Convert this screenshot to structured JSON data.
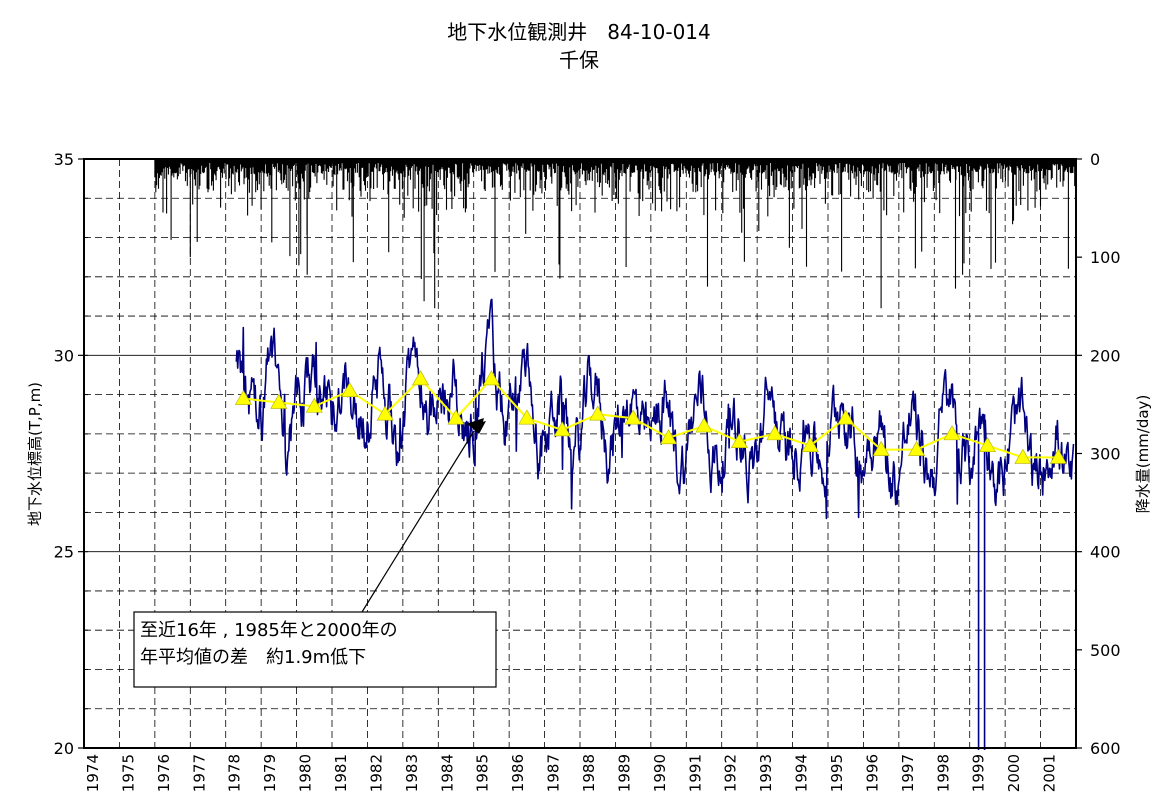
{
  "chart_data": {
    "type": "line",
    "title": "地下水位観測井　84-10-014",
    "subtitle": "千保",
    "xlabel": "",
    "ylabel": "地下水位標高(T,P,m)",
    "y2label": "降水量(mm/day)",
    "x_ticks": [
      "1974",
      "1975",
      "1976",
      "1977",
      "1978",
      "1979",
      "1980",
      "1981",
      "1982",
      "1983",
      "1984",
      "1985",
      "1986",
      "1987",
      "1988",
      "1989",
      "1990",
      "1991",
      "1992",
      "1993",
      "1994",
      "1995",
      "1996",
      "1997",
      "1998",
      "1999",
      "2000",
      "2001"
    ],
    "xlim": [
      1974,
      2002
    ],
    "ylim": [
      20,
      35
    ],
    "y_ticks": [
      20,
      25,
      30,
      35
    ],
    "y2lim": [
      600,
      0
    ],
    "y2_ticks": [
      0,
      100,
      200,
      300,
      400,
      500,
      600
    ],
    "grid": true,
    "series": [
      {
        "name": "annual_mean",
        "color": "#ffff00",
        "marker": "triangle",
        "x": [
          1978.5,
          1979.5,
          1980.5,
          1981.5,
          1982.5,
          1983.5,
          1984.5,
          1985.5,
          1986.5,
          1987.5,
          1988.5,
          1989.5,
          1990.5,
          1991.5,
          1992.5,
          1993.5,
          1994.5,
          1995.5,
          1996.5,
          1997.5,
          1998.5,
          1999.5,
          2000.5,
          2001.5
        ],
        "values": [
          28.9,
          28.8,
          28.7,
          29.1,
          28.5,
          29.4,
          28.4,
          29.4,
          28.4,
          28.1,
          28.5,
          28.4,
          27.9,
          28.2,
          27.8,
          28.0,
          27.7,
          28.4,
          27.6,
          27.6,
          28.0,
          27.7,
          27.4,
          27.4
        ]
      },
      {
        "name": "daily_groundwater",
        "color": "#000080"
      },
      {
        "name": "daily_rainfall",
        "color": "#000000"
      }
    ],
    "annotation": {
      "lines": [
        "至近16年 , 1985年と2000年の",
        "年平均値の差　約1.9m低下"
      ]
    }
  }
}
